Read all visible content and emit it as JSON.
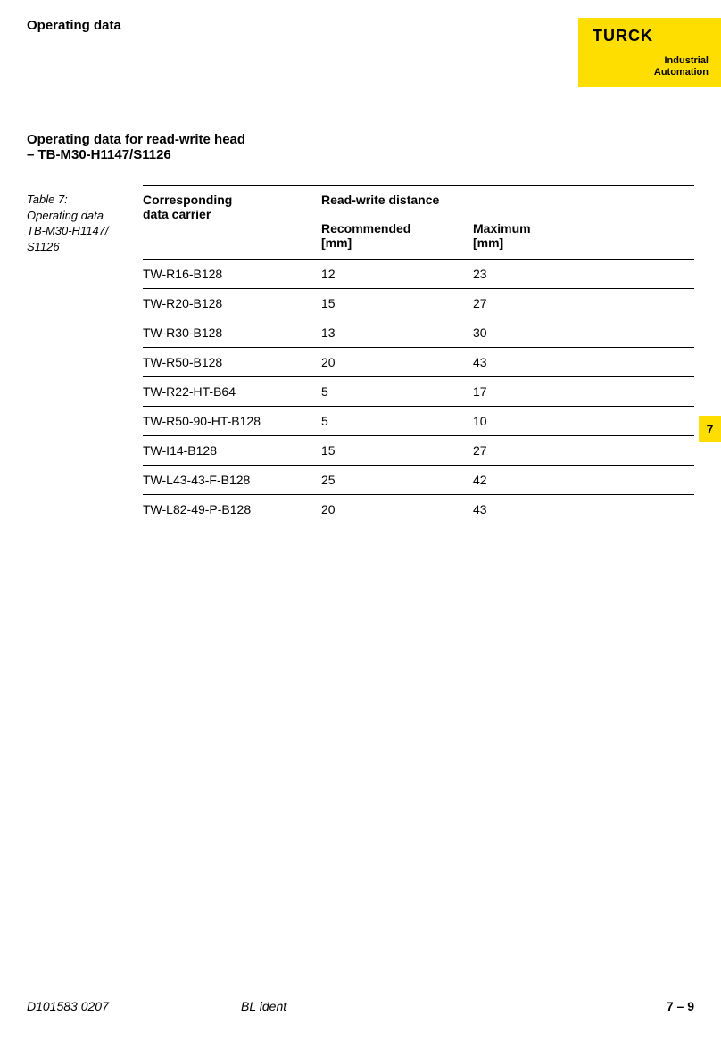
{
  "header": {
    "page_title": "Operating data",
    "logo_brand": "TURCK",
    "logo_tagline_line1": "Industrial",
    "logo_tagline_line2": "Automation"
  },
  "section": {
    "heading_line1": "Operating data for read-write head",
    "heading_line2": "– TB-M30-H1147/S1126"
  },
  "table_caption": {
    "label": "Table 7:",
    "desc1": "Operating data",
    "desc2": "TB-M30-H1147/",
    "desc3": "S1126"
  },
  "table": {
    "headers": {
      "carrier_line1": "Corresponding",
      "carrier_line2": "data carrier",
      "distance_group": "Read-write distance",
      "rec_line1": "Recommended",
      "rec_line2": "[mm]",
      "max_line1": "Maximum",
      "max_line2": "[mm]"
    },
    "rows": [
      {
        "carrier": "TW-R16-B128",
        "rec": "12",
        "max": "23"
      },
      {
        "carrier": "TW-R20-B128",
        "rec": "15",
        "max": "27"
      },
      {
        "carrier": "TW-R30-B128",
        "rec": "13",
        "max": "30"
      },
      {
        "carrier": "TW-R50-B128",
        "rec": "20",
        "max": "43"
      },
      {
        "carrier": "TW-R22-HT-B64",
        "rec": "5",
        "max": "17"
      },
      {
        "carrier": "TW-R50-90-HT-B128",
        "rec": "5",
        "max": "10"
      },
      {
        "carrier": "TW-I14-B128",
        "rec": "15",
        "max": "27"
      },
      {
        "carrier": "TW-L43-43-F-B128",
        "rec": "25",
        "max": "42"
      },
      {
        "carrier": "TW-L82-49-P-B128",
        "rec": "20",
        "max": "43"
      }
    ]
  },
  "page_tab": "7",
  "footer": {
    "left": "D101583  0207",
    "center": "BL ident",
    "right": "7 – 9"
  },
  "colors": {
    "accent": "#fedd00",
    "text": "#000000",
    "bg": "#ffffff"
  }
}
